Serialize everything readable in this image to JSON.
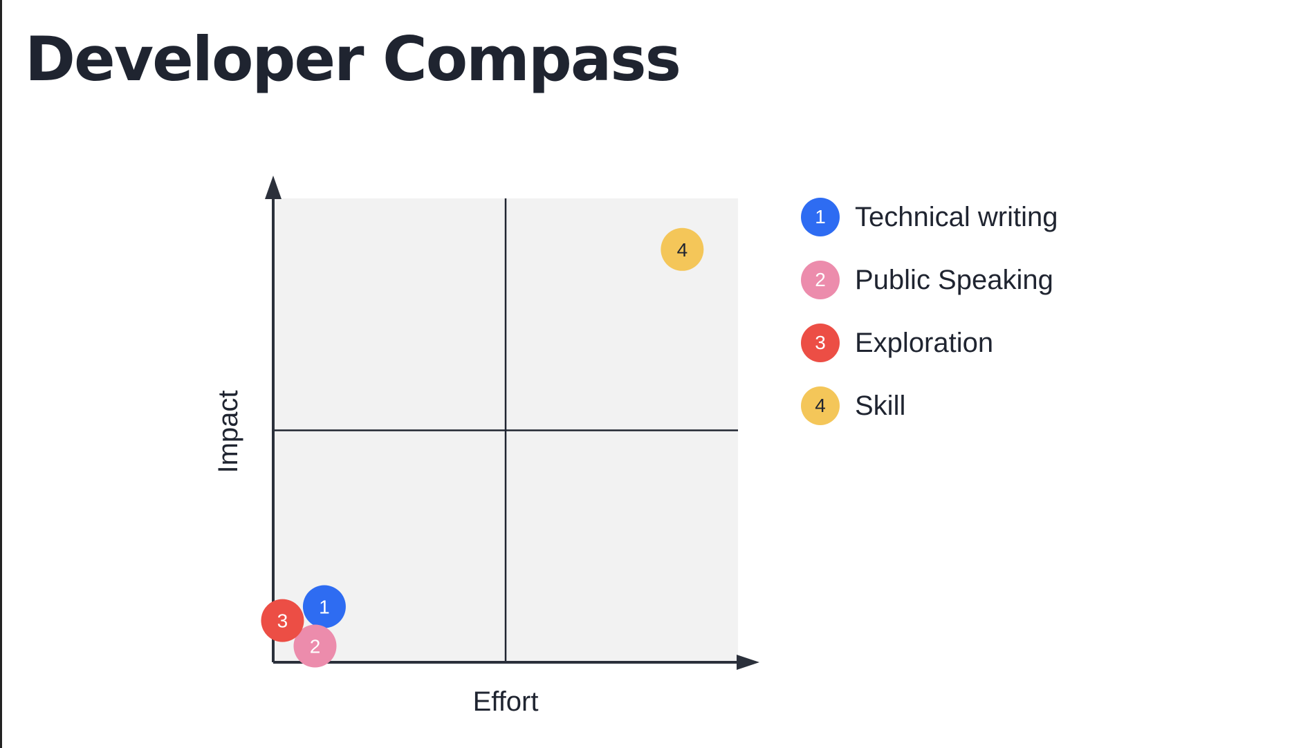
{
  "page": {
    "title": "Developer Compass"
  },
  "chart_data": {
    "type": "scatter",
    "title": "",
    "xlabel": "Effort",
    "ylabel": "Impact",
    "xlim": [
      0,
      10
    ],
    "ylim": [
      0,
      10
    ],
    "quadrant_dividers": {
      "x": 5,
      "y": 5
    },
    "grid": false,
    "legend_position": "right",
    "plot_background": "#f2f2f2",
    "series": [
      {
        "name": "Technical writing",
        "marker": "1",
        "x": 1.1,
        "y": 1.2,
        "color": "#2e6cf2",
        "text_color": "#ffffff"
      },
      {
        "name": "Public Speaking",
        "marker": "2",
        "x": 0.9,
        "y": 0.35,
        "color": "#ec8cac",
        "text_color": "#ffffff"
      },
      {
        "name": "Exploration",
        "marker": "3",
        "x": 0.2,
        "y": 0.9,
        "color": "#ec4e45",
        "text_color": "#ffffff"
      },
      {
        "name": "Skill",
        "marker": "4",
        "x": 8.8,
        "y": 8.9,
        "color": "#f4c659",
        "text_color": "#1f2430"
      }
    ]
  }
}
